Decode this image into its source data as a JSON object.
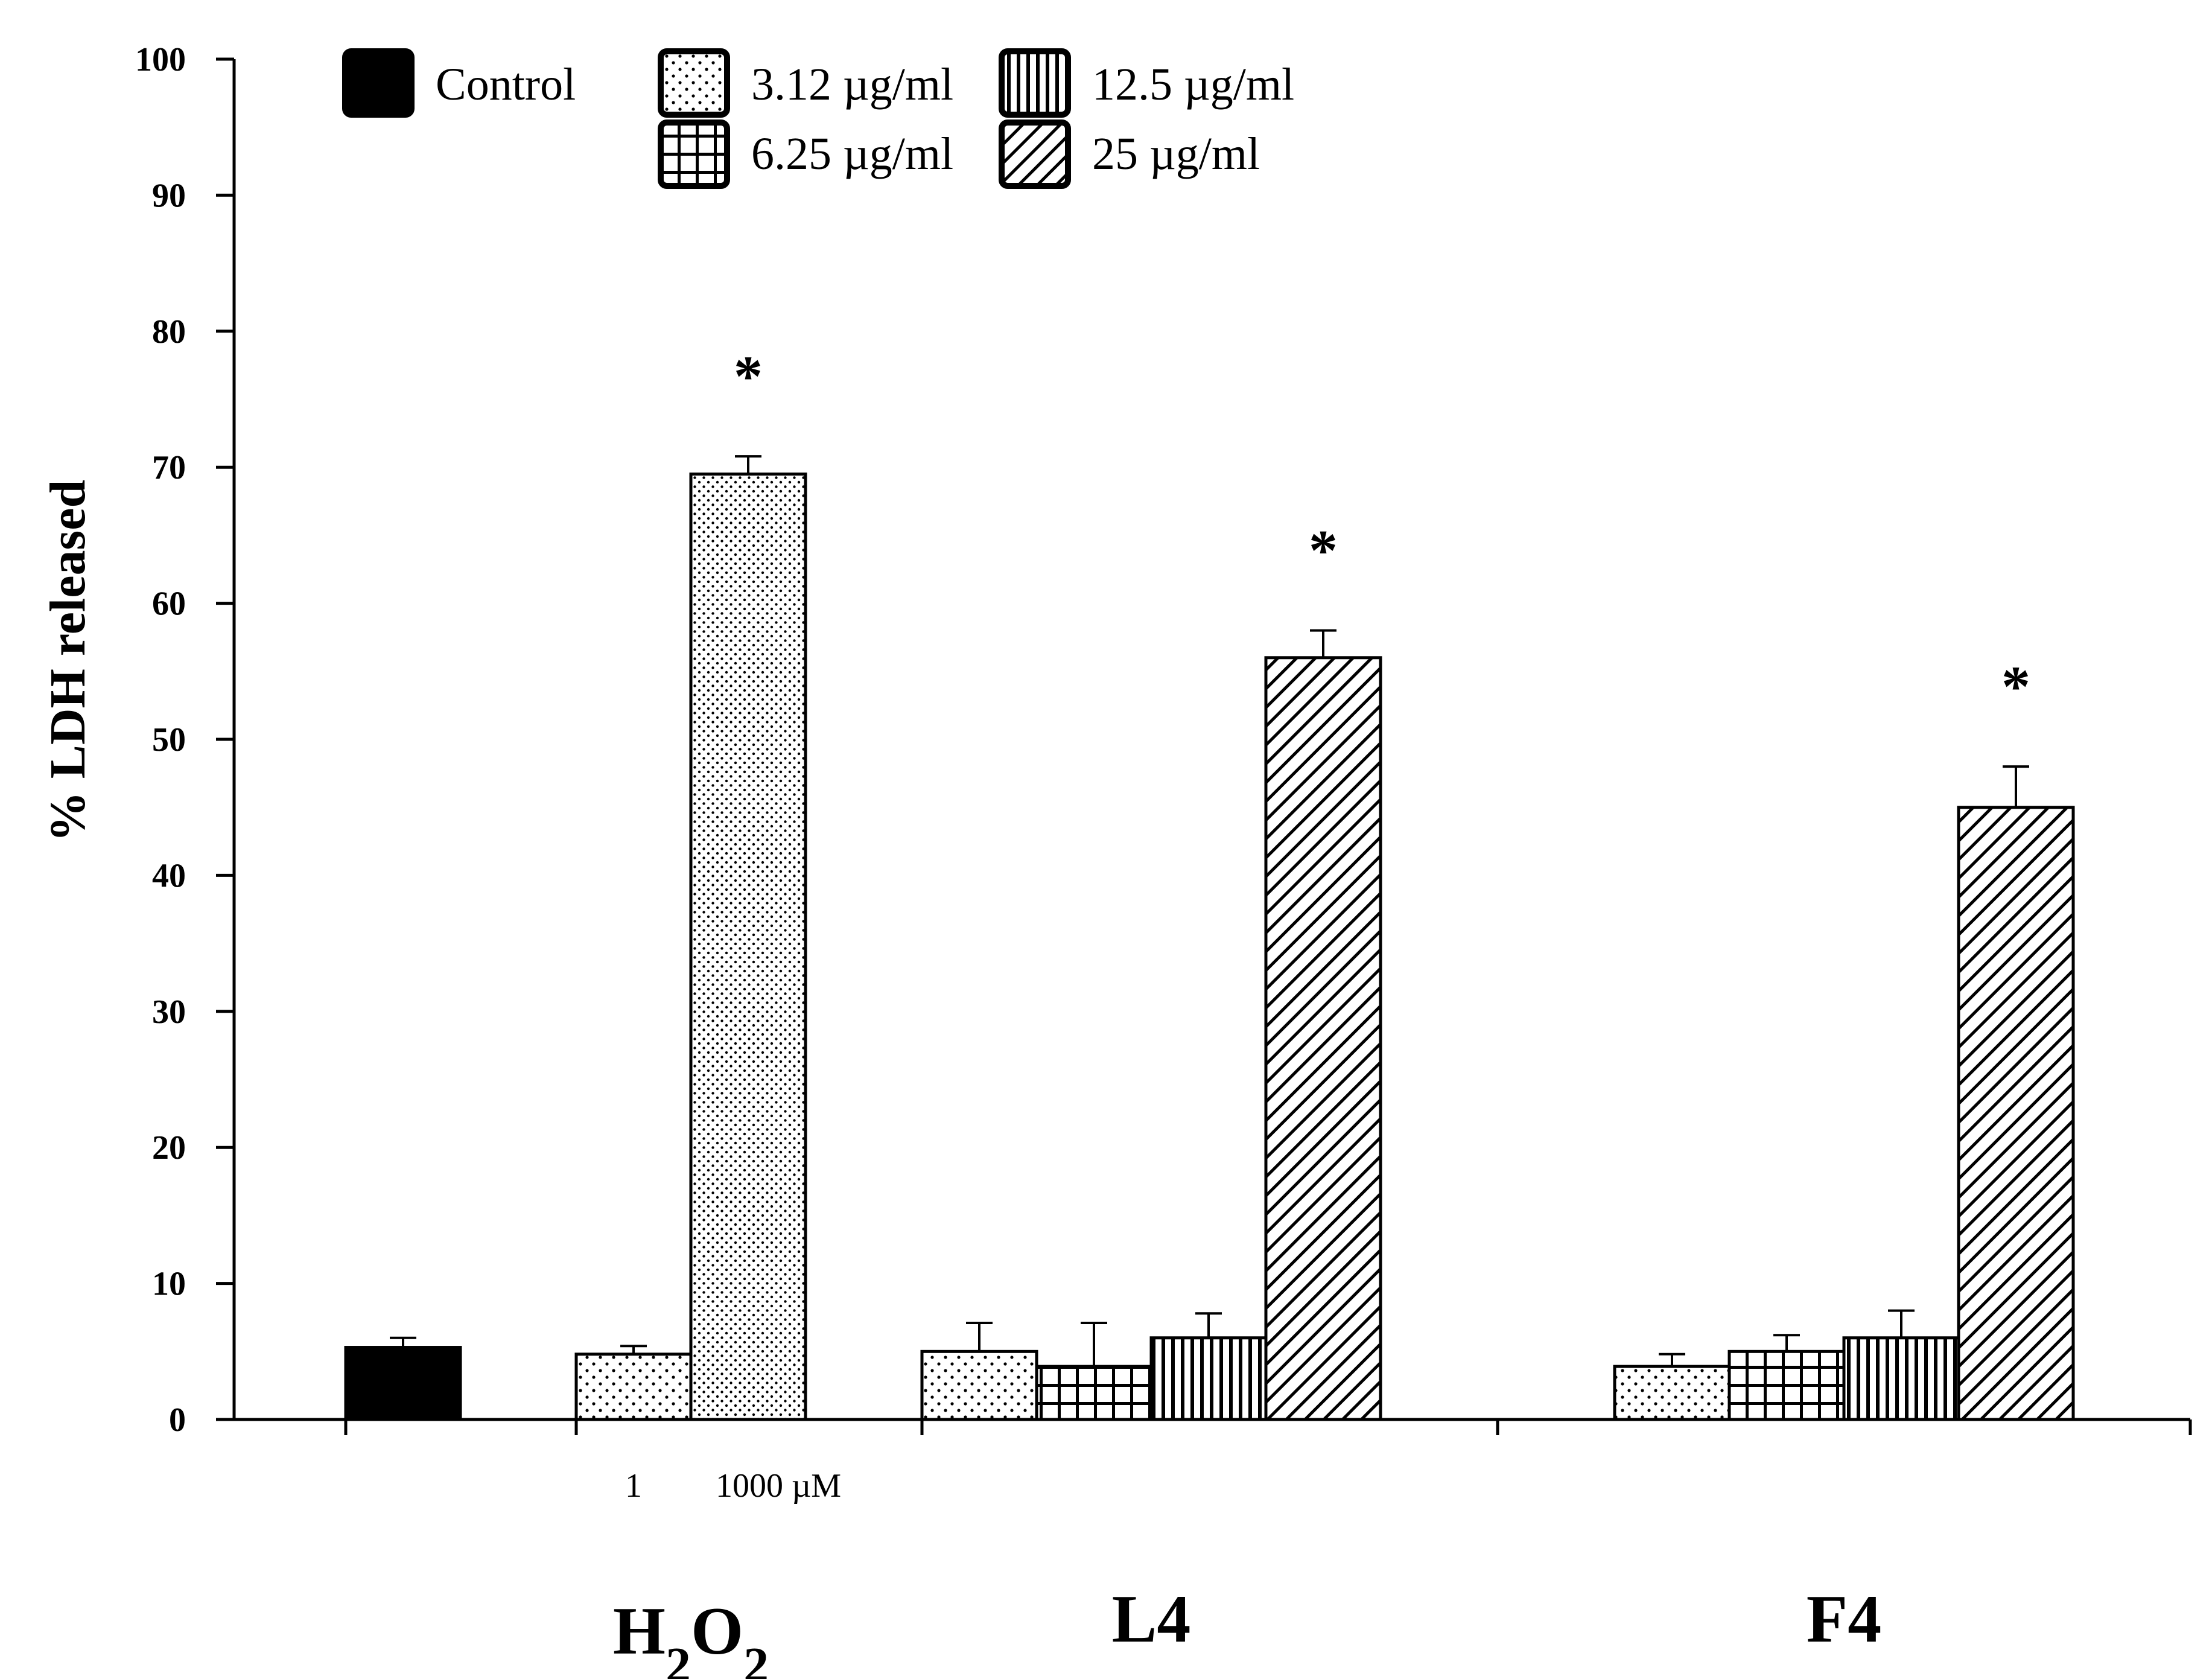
{
  "chart_data": {
    "type": "bar",
    "title": "",
    "xlabel": "",
    "ylabel": "% LDH released",
    "ylim": [
      0,
      100
    ],
    "yticks": [
      "0",
      "10",
      "20",
      "30",
      "40",
      "50",
      "60",
      "70",
      "80",
      "90",
      "100"
    ],
    "grid": false,
    "legend_position": "top-left",
    "legend": [
      {
        "name": "Control",
        "pattern": "solid"
      },
      {
        "name": "3.12 µg/ml",
        "pattern": "dots-sparse"
      },
      {
        "name": "6.25 µg/ml",
        "pattern": "grid"
      },
      {
        "name": "12.5 µg/ml",
        "pattern": "vertical"
      },
      {
        "name": "25 µg/ml",
        "pattern": "diagonal"
      }
    ],
    "groups": [
      {
        "label": "",
        "bars": [
          {
            "name": "Control",
            "value": 5.3,
            "error": 0.7,
            "pattern": "solid",
            "star": false
          }
        ]
      },
      {
        "label": "H2O2",
        "label_main": "H",
        "label_sub1": "2",
        "label_mid": "O",
        "label_sub2": "2",
        "sub_labels": [
          "1",
          "1000 µM"
        ],
        "bars": [
          {
            "name": "1 µM",
            "value": 4.8,
            "error": 0.6,
            "pattern": "dots-sparse",
            "star": false
          },
          {
            "name": "1000 µM",
            "value": 69.5,
            "error": 1.3,
            "pattern": "dots-dense",
            "star": true
          }
        ]
      },
      {
        "label": "L4",
        "bars": [
          {
            "name": "3.12 µg/ml",
            "value": 5.0,
            "error": 2.1,
            "pattern": "dots-sparse",
            "star": false
          },
          {
            "name": "6.25 µg/ml",
            "value": 3.9,
            "error": 3.2,
            "pattern": "grid",
            "star": false
          },
          {
            "name": "12.5 µg/ml",
            "value": 6.0,
            "error": 1.8,
            "pattern": "vertical",
            "star": false
          },
          {
            "name": "25 µg/ml",
            "value": 56.0,
            "error": 2.0,
            "pattern": "diagonal",
            "star": true
          }
        ]
      },
      {
        "label": "F4",
        "bars": [
          {
            "name": "3.12 µg/ml",
            "value": 3.9,
            "error": 0.9,
            "pattern": "dots-sparse",
            "star": false
          },
          {
            "name": "6.25 µg/ml",
            "value": 5.0,
            "error": 1.2,
            "pattern": "grid",
            "star": false
          },
          {
            "name": "12.5 µg/ml",
            "value": 6.0,
            "error": 2.0,
            "pattern": "vertical",
            "star": false
          },
          {
            "name": "25 µg/ml",
            "value": 45.0,
            "error": 3.0,
            "pattern": "diagonal",
            "star": true
          }
        ]
      }
    ],
    "star_symbol": "*"
  }
}
